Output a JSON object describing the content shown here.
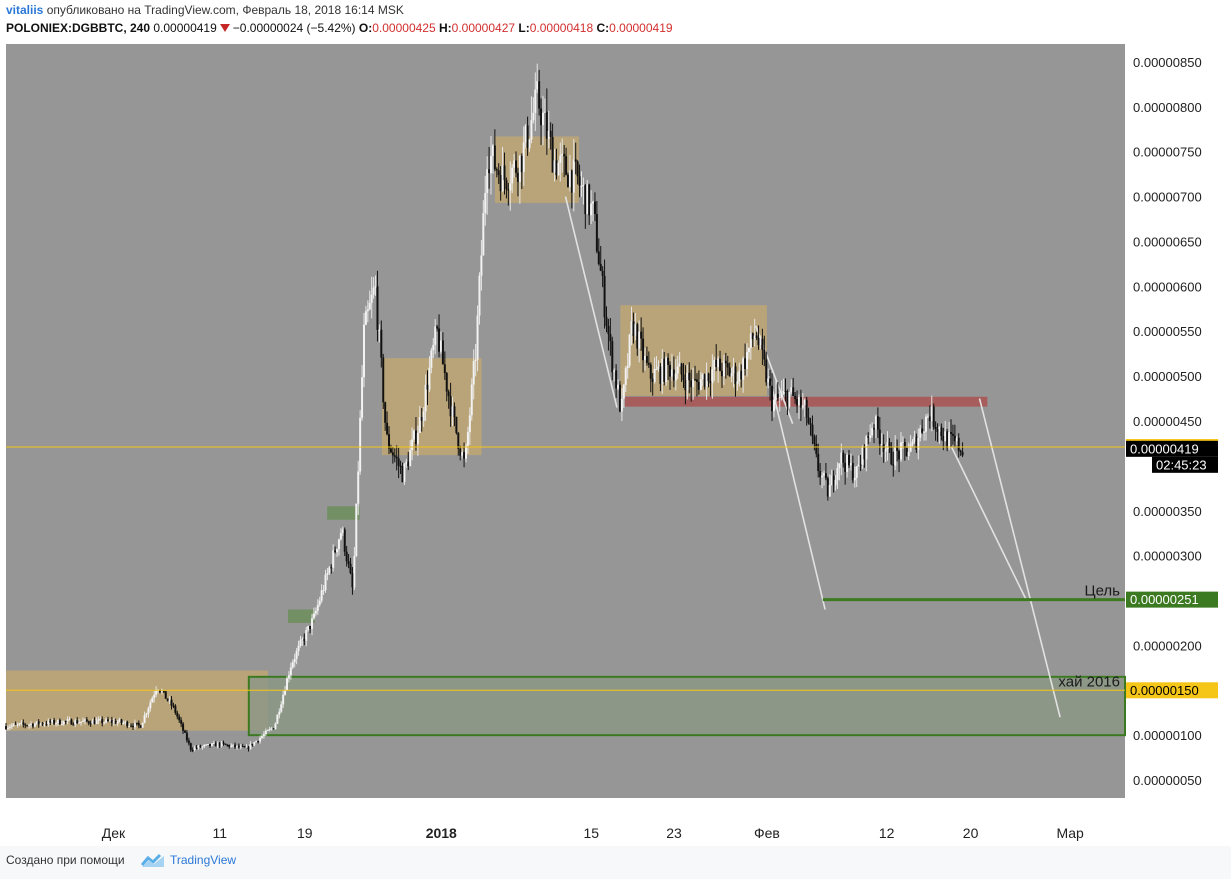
{
  "header": {
    "user": "vitaliis",
    "published": "опубликовано на TradingView.com, Февраль 18, 2018 16:14 MSK",
    "symbol": "POLONIEX:DGBBTC, 240",
    "price": "0.00000419",
    "change": "−0.00000024 (−5.42%)",
    "o_label": "O:",
    "o_value": "0.00000425",
    "h_label": "H:",
    "h_value": "0.00000427",
    "l_label": "L:",
    "l_value": "0.00000418",
    "c_label": "C:",
    "c_value": "0.00000419"
  },
  "footer": {
    "created_with": "Создано при помощи",
    "brand": "TradingView"
  },
  "colors": {
    "chart_bg": "#969696",
    "candle": "#111111",
    "wick_light": "#e6e6e6",
    "consolidation_box": "#c4a86f",
    "resistance_bar": "#a85a58",
    "target_line": "#3c7a22",
    "green_box": "#6f8f5e",
    "yellow_line": "#f5c518"
  },
  "chart_data": {
    "type": "candlestick",
    "symbol": "POLONIEX:DGBBTC",
    "interval": "240",
    "ylim": [
      3e-07,
      8.7e-06
    ],
    "y_ticks": [
      "0.00000850",
      "0.00000800",
      "0.00000750",
      "0.00000700",
      "0.00000650",
      "0.00000600",
      "0.00000550",
      "0.00000500",
      "0.00000450",
      "0.00000350",
      "0.00000300",
      "0.00000200",
      "0.00000100",
      "0.00000050"
    ],
    "x_labels": [
      "Дек",
      "11",
      "19",
      "2018",
      "15",
      "23",
      "Фев",
      "12",
      "20",
      "Мар"
    ],
    "price_path": [
      {
        "t": 0.0,
        "p": 1.1e-06
      },
      {
        "t": 0.05,
        "p": 1.15e-06
      },
      {
        "t": 0.1,
        "p": 1.15e-06
      },
      {
        "t": 0.12,
        "p": 1.1e-06
      },
      {
        "t": 0.135,
        "p": 1.55e-06
      },
      {
        "t": 0.15,
        "p": 1.3e-06
      },
      {
        "t": 0.165,
        "p": 8.5e-07
      },
      {
        "t": 0.19,
        "p": 9e-07
      },
      {
        "t": 0.215,
        "p": 8.5e-07
      },
      {
        "t": 0.24,
        "p": 1.1e-06
      },
      {
        "t": 0.255,
        "p": 1.8e-06
      },
      {
        "t": 0.275,
        "p": 2.3e-06
      },
      {
        "t": 0.3,
        "p": 3.3e-06
      },
      {
        "t": 0.31,
        "p": 2.6e-06
      },
      {
        "t": 0.32,
        "p": 5.5e-06
      },
      {
        "t": 0.33,
        "p": 6e-06
      },
      {
        "t": 0.34,
        "p": 4.3e-06
      },
      {
        "t": 0.355,
        "p": 3.9e-06
      },
      {
        "t": 0.37,
        "p": 4.5e-06
      },
      {
        "t": 0.385,
        "p": 5.5e-06
      },
      {
        "t": 0.4,
        "p": 4.5e-06
      },
      {
        "t": 0.41,
        "p": 4e-06
      },
      {
        "t": 0.42,
        "p": 5.3e-06
      },
      {
        "t": 0.43,
        "p": 7.5e-06
      },
      {
        "t": 0.445,
        "p": 7.2e-06
      },
      {
        "t": 0.46,
        "p": 7.4e-06
      },
      {
        "t": 0.475,
        "p": 8.1e-06
      },
      {
        "t": 0.49,
        "p": 7.4e-06
      },
      {
        "t": 0.51,
        "p": 7.2e-06
      },
      {
        "t": 0.525,
        "p": 6.8e-06
      },
      {
        "t": 0.54,
        "p": 5.3e-06
      },
      {
        "t": 0.55,
        "p": 4.6e-06
      },
      {
        "t": 0.56,
        "p": 5.6e-06
      },
      {
        "t": 0.575,
        "p": 5e-06
      },
      {
        "t": 0.595,
        "p": 5.1e-06
      },
      {
        "t": 0.615,
        "p": 4.9e-06
      },
      {
        "t": 0.635,
        "p": 5.1e-06
      },
      {
        "t": 0.655,
        "p": 5e-06
      },
      {
        "t": 0.67,
        "p": 5.5e-06
      },
      {
        "t": 0.685,
        "p": 4.7e-06
      },
      {
        "t": 0.7,
        "p": 4.8e-06
      },
      {
        "t": 0.715,
        "p": 4.6e-06
      },
      {
        "t": 0.725,
        "p": 4e-06
      },
      {
        "t": 0.735,
        "p": 3.7e-06
      },
      {
        "t": 0.745,
        "p": 4.1e-06
      },
      {
        "t": 0.76,
        "p": 3.9e-06
      },
      {
        "t": 0.775,
        "p": 4.5e-06
      },
      {
        "t": 0.79,
        "p": 4.1e-06
      },
      {
        "t": 0.81,
        "p": 4.2e-06
      },
      {
        "t": 0.825,
        "p": 4.6e-06
      },
      {
        "t": 0.84,
        "p": 4.3e-06
      },
      {
        "t": 0.855,
        "p": 4.19e-06
      }
    ],
    "levels": [
      {
        "value": 4.21e-06,
        "label": "0.00000421",
        "style": "yellow"
      },
      {
        "value": 4.19e-06,
        "label": "0.00000419",
        "style": "black"
      },
      {
        "value": 2.51e-06,
        "label": "0.00000251",
        "style": "green",
        "text": "Цель"
      },
      {
        "value": 1.5e-06,
        "label": "0.00000150",
        "style": "yellow",
        "text": "хай 2016"
      }
    ],
    "countdown": "02:45:23",
    "zones": [
      {
        "kind": "consolidation",
        "t0": 0.0,
        "t1": 0.234,
        "p_top": 1.72e-06,
        "p_bottom": 1.05e-06
      },
      {
        "kind": "consolidation",
        "t0": 0.336,
        "t1": 0.425,
        "p_top": 5.2e-06,
        "p_bottom": 4.12e-06
      },
      {
        "kind": "consolidation",
        "t0": 0.437,
        "t1": 0.512,
        "p_top": 7.67e-06,
        "p_bottom": 6.93e-06
      },
      {
        "kind": "consolidation",
        "t0": 0.549,
        "t1": 0.68,
        "p_top": 5.79e-06,
        "p_bottom": 4.78e-06
      },
      {
        "kind": "resistance",
        "t0": 0.553,
        "t1": 0.877,
        "p_top": 4.77e-06,
        "p_bottom": 4.66e-06
      },
      {
        "kind": "accumulation",
        "t0": 0.287,
        "t1": 0.316,
        "p_top": 3.55e-06,
        "p_bottom": 3.4e-06
      },
      {
        "kind": "accumulation",
        "t0": 0.252,
        "t1": 0.276,
        "p_top": 2.4e-06,
        "p_bottom": 2.25e-06
      },
      {
        "kind": "support",
        "t0": 0.217,
        "t1": 1.0,
        "p_top": 1.65e-06,
        "p_bottom": 1e-06
      }
    ],
    "projection_lines": [
      [
        {
          "t": 0.5,
          "p": 7e-06
        },
        {
          "t": 0.546,
          "p": 4.65e-06
        }
      ],
      [
        {
          "t": 0.67,
          "p": 5.56e-06
        },
        {
          "t": 0.703,
          "p": 4.47e-06
        }
      ],
      [
        {
          "t": 0.682,
          "p": 5e-06
        },
        {
          "t": 0.732,
          "p": 2.4e-06
        }
      ],
      [
        {
          "t": 0.845,
          "p": 4.21e-06
        },
        {
          "t": 0.912,
          "p": 2.5e-06
        }
      ],
      [
        {
          "t": 0.87,
          "p": 4.75e-06
        },
        {
          "t": 0.942,
          "p": 1.2e-06
        }
      ]
    ],
    "target_line": {
      "t0": 0.73,
      "t1": 1.0,
      "p": 2.51e-06
    }
  }
}
